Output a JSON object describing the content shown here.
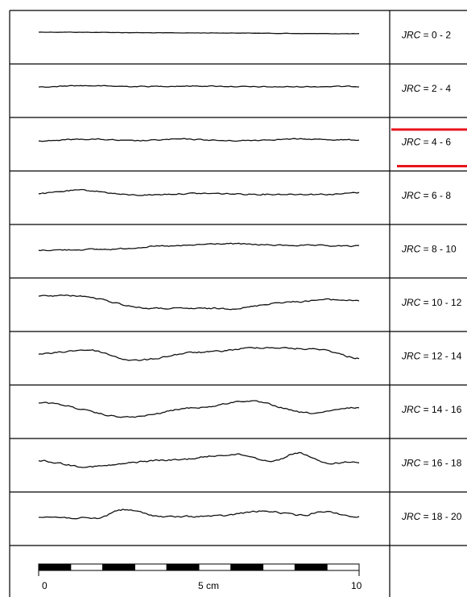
{
  "rows": [
    {
      "jrc_label": "JRC",
      "range": " = 0 - 2"
    },
    {
      "jrc_label": "JRC",
      "range": " = 2 - 4"
    },
    {
      "jrc_label": "JRC",
      "range": " = 4 - 6"
    },
    {
      "jrc_label": "JRC",
      "range": " = 6 - 8"
    },
    {
      "jrc_label": "JRC",
      "range": " = 8 - 10"
    },
    {
      "jrc_label": "JRC",
      "range": " = 10 - 12"
    },
    {
      "jrc_label": "JRC",
      "range": " = 12 - 14"
    },
    {
      "jrc_label": "JRC",
      "range": " = 14 - 16"
    },
    {
      "jrc_label": "JRC",
      "range": " = 16 - 18"
    },
    {
      "jrc_label": "JRC",
      "range": " = 18 - 20"
    }
  ],
  "highlighted_row": 2,
  "highlight_color": "#e8141b",
  "scale": {
    "min_label": "0",
    "mid_label": "5 cm",
    "max_label": "10",
    "segments": 10
  }
}
